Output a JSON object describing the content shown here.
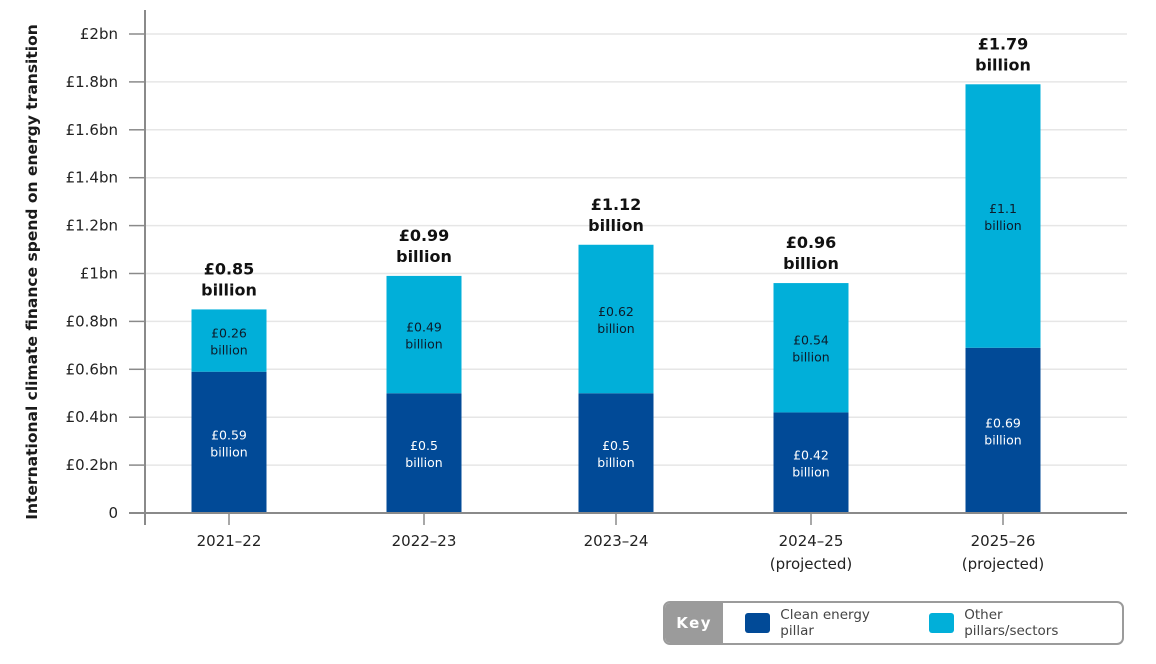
{
  "chart_data": {
    "type": "bar",
    "stacked": true,
    "title": "",
    "xlabel": "",
    "ylabel": "International climate finance spend on energy transition",
    "ylim": [
      0,
      2
    ],
    "yticks": [
      0,
      0.2,
      0.4,
      0.6,
      0.8,
      1.0,
      1.2,
      1.4,
      1.6,
      1.8,
      2.0
    ],
    "ytick_labels": [
      "0",
      "£0.2bn",
      "£0.4bn",
      "£0.6bn",
      "£0.8bn",
      "£1bn",
      "£1.2bn",
      "£1.4bn",
      "£1.6bn",
      "£1.8bn",
      "£2bn"
    ],
    "grid": true,
    "legend_position": "bottom-right",
    "categories": [
      [
        "2021–22"
      ],
      [
        "2022–23"
      ],
      [
        "2023–24"
      ],
      [
        "2024–25",
        "(projected)"
      ],
      [
        "2025–26",
        "(projected)"
      ]
    ],
    "series": [
      {
        "name": "Clean energy pillar",
        "color": "#014a97",
        "values": [
          0.59,
          0.5,
          0.5,
          0.42,
          0.69
        ],
        "labels": [
          "£0.59",
          "£0.5",
          "£0.5",
          "£0.42",
          "£0.69"
        ]
      },
      {
        "name": "Other pillars/sectors",
        "color": "#01afd9",
        "values": [
          0.26,
          0.49,
          0.62,
          0.54,
          1.1
        ],
        "labels": [
          "£0.26",
          "£0.49",
          "£0.62",
          "£0.54",
          "£1.1"
        ]
      }
    ],
    "totals": [
      0.85,
      0.99,
      1.12,
      0.96,
      1.79
    ],
    "total_labels": [
      "£0.85",
      "£0.99",
      "£1.12",
      "£0.96",
      "£1.79"
    ],
    "unit_word": "billion"
  },
  "legend": {
    "title": "Key",
    "items": [
      {
        "label": "Clean energy pillar",
        "color": "#014a97"
      },
      {
        "label": "Other pillars/sectors",
        "color": "#01afd9"
      }
    ]
  }
}
